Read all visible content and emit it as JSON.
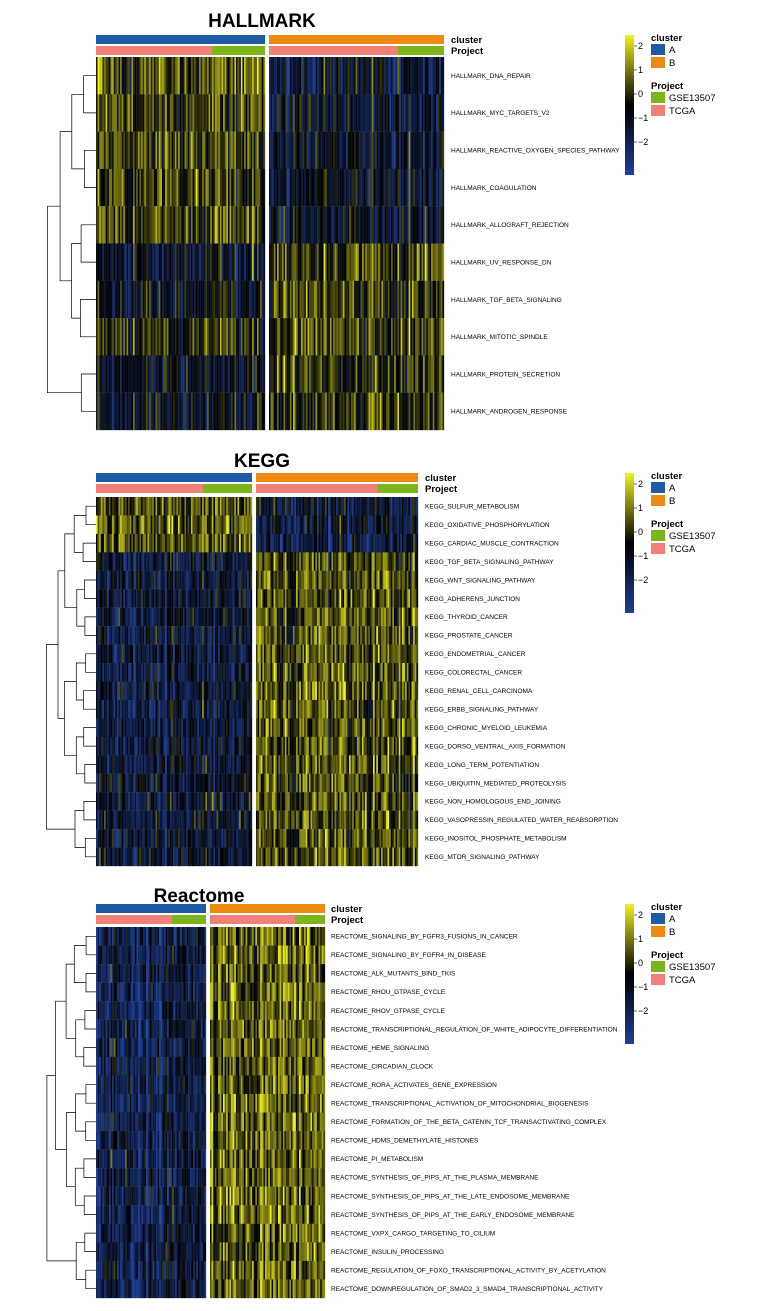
{
  "colors": {
    "cluster_A": "#1f5aa6",
    "cluster_B": "#ee8a12",
    "project_GSE13507": "#7cb519",
    "project_TCGA": "#f08078",
    "low": "#1e3f9a",
    "mid": "#000000",
    "high": "#f2f21c"
  },
  "chart_data": [
    {
      "type": "heatmap",
      "title": "HALLMARK",
      "annotation_labels": [
        "cluster",
        "Project"
      ],
      "legend": {
        "cluster_title": "cluster",
        "cluster_levels": [
          "A",
          "B"
        ],
        "project_title": "Project",
        "project_levels": [
          "GSE13507",
          "TCGA"
        ],
        "color_scale_ticks": [
          "2",
          "1",
          "0",
          "−1",
          "−2"
        ]
      },
      "row_labels": [
        "HALLMARK_DNA_REPAIR",
        "HALLMARK_MYC_TARGETS_V2",
        "HALLMARK_REACTIVE_OXYGEN_SPECIES_PATHWAY",
        "HALLMARK_COAGULATION",
        "HALLMARK_ALLOGRAFT_REJECTION",
        "HALLMARK_UV_RESPONSE_DN",
        "HALLMARK_TGF_BETA_SIGNALING",
        "HALLMARK_MITOTIC_SPINDLE",
        "HALLMARK_PROTEIN_SECRETION",
        "HALLMARK_ANDROGEN_RESPONSE"
      ],
      "cluster_A_row_means": [
        0.6,
        0.5,
        0.5,
        0.4,
        0.45,
        -0.5,
        -0.4,
        0.1,
        -0.4,
        -0.4
      ],
      "cluster_B_row_means": [
        -0.6,
        -0.5,
        -0.5,
        -0.45,
        -0.45,
        0.5,
        0.4,
        0.45,
        0.4,
        0.4
      ]
    },
    {
      "type": "heatmap",
      "title": "KEGG",
      "annotation_labels": [
        "cluster",
        "Project"
      ],
      "legend": {
        "cluster_title": "cluster",
        "cluster_levels": [
          "A",
          "B"
        ],
        "project_title": "Project",
        "project_levels": [
          "GSE13507",
          "TCGA"
        ],
        "color_scale_ticks": [
          "2",
          "1",
          "0",
          "−1",
          "−2"
        ]
      },
      "row_labels": [
        "KEGG_SULFUR_METABOLISM",
        "KEGG_OXIDATIVE_PHOSPHORYLATION",
        "KEGG_CARDIAC_MUSCLE_CONTRACTION",
        "KEGG_TGF_BETA_SIGNALING_PATHWAY",
        "KEGG_WNT_SIGNALING_PATHWAY",
        "KEGG_ADHERENS_JUNCTION",
        "KEGG_THYROID_CANCER",
        "KEGG_PROSTATE_CANCER",
        "KEGG_ENDOMETRIAL_CANCER",
        "KEGG_COLORECTAL_CANCER",
        "KEGG_RENAL_CELL_CARCINOMA",
        "KEGG_ERBB_SIGNALING_PATHWAY",
        "KEGG_CHRONIC_MYELOID_LEUKEMIA",
        "KEGG_DORSO_VENTRAL_AXIS_FORMATION",
        "KEGG_LONG_TERM_POTENTIATION",
        "KEGG_UBIQUITIN_MEDIATED_PROTEOLYSIS",
        "KEGG_NON_HOMOLOGOUS_END_JOINING",
        "KEGG_VASOPRESSIN_REGULATED_WATER_REABSORPTION",
        "KEGG_INOSITOL_PHOSPHATE_METABOLISM",
        "KEGG_MTOR_SIGNALING_PATHWAY"
      ],
      "cluster_A_row_means": [
        0.5,
        0.7,
        0.6,
        -0.6,
        -0.6,
        -0.6,
        -0.6,
        -0.7,
        -0.7,
        -0.7,
        -0.7,
        -0.7,
        -0.7,
        -0.6,
        -0.6,
        -0.5,
        -0.5,
        -0.6,
        -0.6,
        -0.6
      ],
      "cluster_B_row_means": [
        -0.6,
        -0.7,
        -0.7,
        0.6,
        0.6,
        0.6,
        0.6,
        0.7,
        0.7,
        0.7,
        0.7,
        0.7,
        0.7,
        0.6,
        0.6,
        0.5,
        0.5,
        0.6,
        0.6,
        0.6
      ]
    },
    {
      "type": "heatmap",
      "title": "Reactome",
      "annotation_labels": [
        "cluster",
        "Project"
      ],
      "legend": {
        "cluster_title": "cluster",
        "cluster_levels": [
          "A",
          "B"
        ],
        "project_title": "Project",
        "project_levels": [
          "GSE13507",
          "TCGA"
        ],
        "color_scale_ticks": [
          "2",
          "1",
          "0",
          "−1",
          "−2"
        ]
      },
      "row_labels": [
        "REACTOME_SIGNALING_BY_FGFR3_FUSIONS_IN_CANCER",
        "REACTOME_SIGNALING_BY_FGFR4_IN_DISEASE",
        "REACTOME_ALK_MUTANTS_BIND_TKIS",
        "REACTOME_RHOU_GTPASE_CYCLE",
        "REACTOME_RHOV_GTPASE_CYCLE",
        "REACTOME_TRANSCRIPTIONAL_REGULATION_OF_WHITE_ADIPOCYTE_DIFFERENTIATION",
        "REACTOME_HEME_SIGNALING",
        "REACTOME_CIRCADIAN_CLOCK",
        "REACTOME_RORA_ACTIVATES_GENE_EXPRESSION",
        "REACTOME_TRANSCRIPTIONAL_ACTIVATION_OF_MITOCHONDRIAL_BIOGENESIS",
        "REACTOME_FORMATION_OF_THE_BETA_CATENIN_TCF_TRANSACTIVATING_COMPLEX",
        "REACTOME_HDMS_DEMETHYLATE_HISTONES",
        "REACTOME_PI_METABOLISM",
        "REACTOME_SYNTHESIS_OF_PIPS_AT_THE_PLASMA_MEMBRANE",
        "REACTOME_SYNTHESIS_OF_PIPS_AT_THE_LATE_ENDOSOME_MEMBRANE",
        "REACTOME_SYNTHESIS_OF_PIPS_AT_THE_EARLY_ENDOSOME_MEMBRANE",
        "REACTOME_VXPX_CARGO_TARGETING_TO_CILIUM",
        "REACTOME_INSULIN_PROCESSING",
        "REACTOME_REGULATION_OF_FOXO_TRANSCRIPTIONAL_ACTIVITY_BY_ACETYLATION",
        "REACTOME_DOWNREGULATION_OF_SMAD2_3_SMAD4_TRANSCRIPTIONAL_ACTIVITY"
      ],
      "cluster_A_row_means": [
        -0.9,
        -0.8,
        -0.8,
        -0.9,
        -0.9,
        -0.8,
        -0.8,
        -0.8,
        -0.8,
        -0.9,
        -0.8,
        -0.8,
        -0.8,
        -0.8,
        -0.8,
        -0.9,
        -0.8,
        -0.7,
        -0.8,
        -0.8
      ],
      "cluster_B_row_means": [
        0.8,
        0.7,
        0.7,
        0.8,
        0.8,
        0.7,
        0.7,
        0.7,
        0.7,
        0.8,
        0.8,
        0.8,
        0.7,
        0.8,
        0.8,
        0.8,
        0.8,
        0.7,
        0.8,
        0.7
      ]
    }
  ]
}
